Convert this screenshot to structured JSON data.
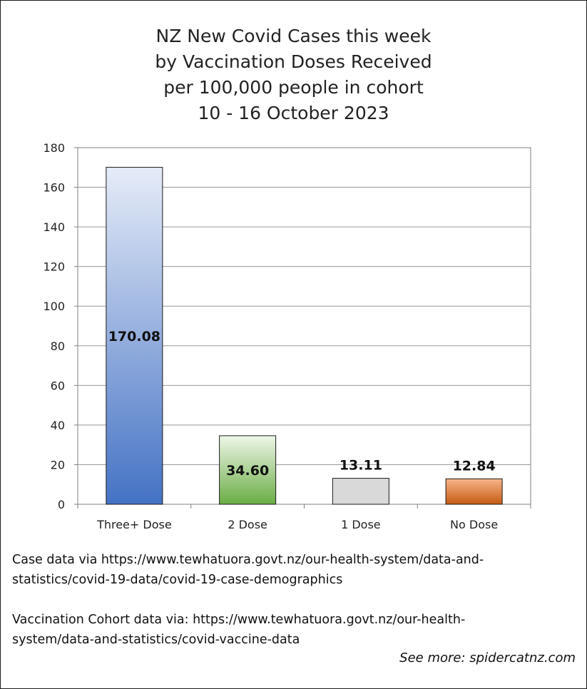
{
  "chart_data": {
    "type": "bar",
    "title_lines": [
      "NZ New Covid Cases this week",
      "by Vaccination Doses Received",
      "per 100,000 people in cohort",
      "10 - 16 October 2023"
    ],
    "categories": [
      "Three+ Dose",
      "2 Dose",
      "1 Dose",
      "No Dose"
    ],
    "values": [
      170.08,
      34.6,
      13.11,
      12.84
    ],
    "data_labels": [
      "170.08",
      "34.60",
      "13.11",
      "12.84"
    ],
    "bar_colors": [
      {
        "top": "#e6ecf8",
        "bottom": "#4472c4"
      },
      {
        "top": "#eef6e8",
        "bottom": "#6aad45"
      },
      {
        "top": "#d9d9d9",
        "bottom": "#d9d9d9"
      },
      {
        "top": "#f8b58a",
        "bottom": "#c55a11"
      }
    ],
    "ylim": [
      0,
      180
    ],
    "yticks": [
      0,
      20,
      40,
      60,
      80,
      100,
      120,
      140,
      160,
      180
    ],
    "grid": true,
    "legend": "none",
    "xlabel": "",
    "ylabel": ""
  },
  "notes": {
    "case_line1": "Case data via https://www.tewhatuora.govt.nz/our-health-system/data-and-",
    "case_line2": "statistics/covid-19-data/covid-19-case-demographics",
    "vacc_line1": "Vaccination Cohort data via: https://www.tewhatuora.govt.nz/our-health-",
    "vacc_line2": "system/data-and-statistics/covid-vaccine-data",
    "see_more": "See more: spidercatnz.com"
  }
}
